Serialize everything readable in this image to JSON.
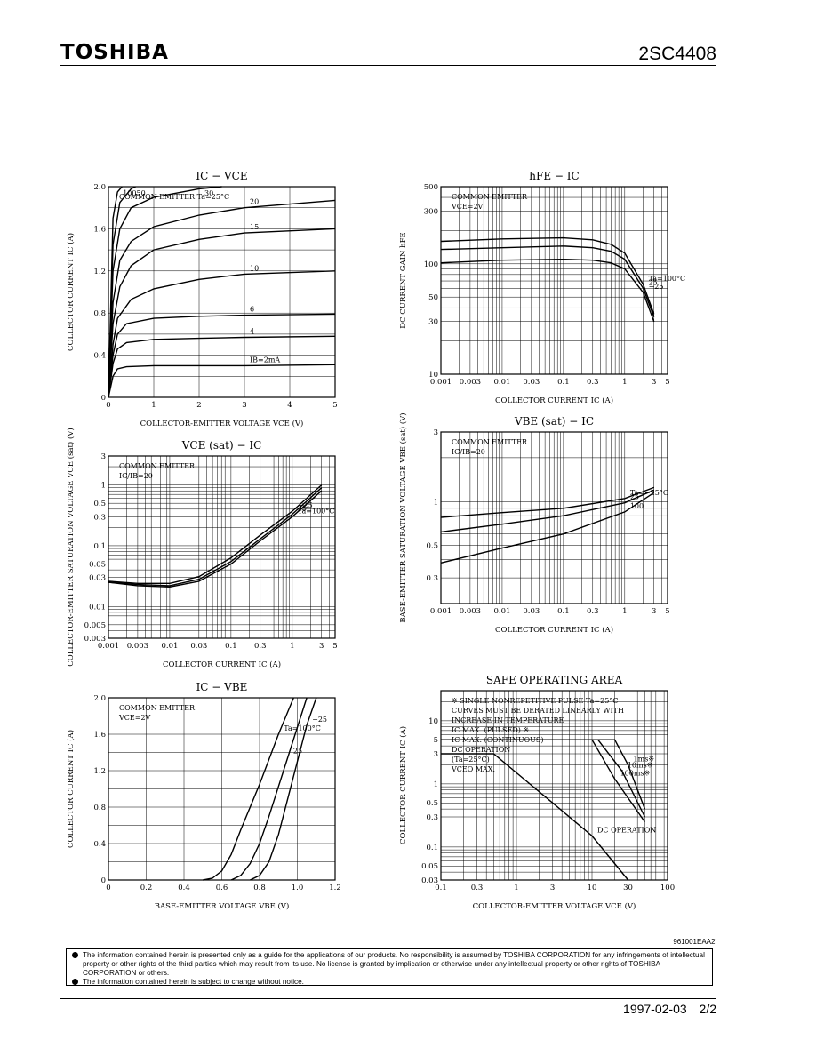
{
  "header": {
    "brand": "TOSHIBA",
    "part_number": "2SC4408"
  },
  "footer": {
    "date_page": "1997-02-03    2/2",
    "doc_number": "961001EAA2'"
  },
  "disclaimer": [
    "The information contained herein is presented only as a guide for the applications of our products. No responsibility is assumed by TOSHIBA CORPORATION for any infringements of intellectual property or other rights of the third parties which may result from its use. No license is granted by implication or otherwise under any intellectual property or other rights of TOSHIBA CORPORATION or others.",
    "The information contained herein is subject to change without notice."
  ],
  "chart_data": [
    {
      "type": "line",
      "title": "IC − VCE",
      "xlabel": "COLLECTOR-EMITTER VOLTAGE  VCE  (V)",
      "ylabel": "COLLECTOR CURRENT  IC  (A)",
      "xlim": [
        0,
        5
      ],
      "ylim": [
        0,
        2.0
      ],
      "xticks": [
        "0",
        "1",
        "2",
        "3",
        "4",
        "5"
      ],
      "yticks": [
        "0",
        "0.4",
        "0.8",
        "1.2",
        "1.6",
        "2.0"
      ],
      "annotation": "COMMON EMITTER   Ta=25°C",
      "series": [
        {
          "name": "IB=2mA",
          "x": [
            0,
            0.1,
            0.2,
            0.4,
            1,
            2,
            3,
            5
          ],
          "y": [
            0,
            0.2,
            0.27,
            0.29,
            0.3,
            0.3,
            0.3,
            0.31
          ]
        },
        {
          "name": "4",
          "x": [
            0,
            0.1,
            0.2,
            0.4,
            1,
            2,
            3,
            5
          ],
          "y": [
            0,
            0.32,
            0.46,
            0.52,
            0.55,
            0.56,
            0.57,
            0.58
          ]
        },
        {
          "name": "6",
          "x": [
            0,
            0.1,
            0.2,
            0.4,
            1,
            2,
            3,
            5
          ],
          "y": [
            0,
            0.4,
            0.6,
            0.7,
            0.75,
            0.77,
            0.78,
            0.79
          ]
        },
        {
          "name": "10",
          "x": [
            0,
            0.1,
            0.2,
            0.5,
            1,
            2,
            3,
            5
          ],
          "y": [
            0,
            0.5,
            0.75,
            0.93,
            1.03,
            1.12,
            1.17,
            1.2
          ]
        },
        {
          "name": "15",
          "x": [
            0,
            0.1,
            0.25,
            0.5,
            1,
            2,
            3,
            5
          ],
          "y": [
            0,
            0.7,
            1.05,
            1.25,
            1.4,
            1.5,
            1.56,
            1.6
          ]
        },
        {
          "name": "20",
          "x": [
            0,
            0.1,
            0.25,
            0.5,
            1,
            2,
            3,
            5
          ],
          "y": [
            0,
            0.9,
            1.3,
            1.48,
            1.62,
            1.73,
            1.8,
            1.87
          ]
        },
        {
          "name": "30",
          "x": [
            0,
            0.1,
            0.25,
            0.5,
            1,
            2,
            2.5
          ],
          "y": [
            0,
            1.2,
            1.6,
            1.8,
            1.9,
            1.98,
            2.0
          ]
        },
        {
          "name": "50",
          "x": [
            0,
            0.1,
            0.25,
            0.5,
            0.6
          ],
          "y": [
            0,
            1.45,
            1.85,
            1.98,
            2.0
          ]
        },
        {
          "name": "100",
          "x": [
            0,
            0.1,
            0.2,
            0.3
          ],
          "y": [
            0,
            1.7,
            1.95,
            2.0
          ]
        }
      ]
    },
    {
      "type": "line",
      "title": "hFE − IC",
      "xlabel": "COLLECTOR CURRENT  IC  (A)",
      "ylabel": "DC CURRENT GAIN  hFE",
      "xscale": "log",
      "yscale": "log",
      "xlim": [
        0.001,
        5
      ],
      "ylim": [
        10,
        500
      ],
      "xticks": [
        "0.001",
        "0.003",
        "0.01",
        "0.03",
        "0.1",
        "0.3",
        "1",
        "3",
        "5"
      ],
      "yticks": [
        "10",
        "30",
        "50",
        "100",
        "300",
        "500"
      ],
      "annotation": [
        "COMMON EMITTER",
        "VCE=2V"
      ],
      "series": [
        {
          "name": "Ta=100°C",
          "x": [
            0.001,
            0.01,
            0.1,
            0.3,
            0.6,
            1,
            2,
            3
          ],
          "y": [
            160,
            168,
            172,
            165,
            150,
            125,
            65,
            35
          ]
        },
        {
          "name": "25",
          "x": [
            0.001,
            0.01,
            0.1,
            0.3,
            0.6,
            1,
            2,
            3
          ],
          "y": [
            135,
            140,
            145,
            140,
            130,
            110,
            60,
            33
          ]
        },
        {
          "name": "−25",
          "x": [
            0.001,
            0.01,
            0.1,
            0.3,
            0.6,
            1,
            2,
            3
          ],
          "y": [
            102,
            108,
            110,
            108,
            102,
            90,
            55,
            30
          ]
        }
      ]
    },
    {
      "type": "line",
      "title": "VCE (sat) − IC",
      "xlabel": "COLLECTOR CURRENT  IC  (A)",
      "ylabel": "COLLECTOR-EMITTER SATURATION VOLTAGE  VCE (sat)  (V)",
      "xscale": "log",
      "yscale": "log",
      "xlim": [
        0.001,
        5
      ],
      "ylim": [
        0.003,
        3
      ],
      "xticks": [
        "0.001",
        "0.003",
        "0.01",
        "0.03",
        "0.1",
        "0.3",
        "1",
        "3",
        "5"
      ],
      "yticks": [
        "0.003",
        "0.005",
        "0.01",
        "0.03",
        "0.05",
        "0.1",
        "0.3",
        "0.5",
        "1",
        "3"
      ],
      "annotation": [
        "COMMON EMITTER",
        "IC/IB=20"
      ],
      "series": [
        {
          "name": "Ta=100°C",
          "x": [
            0.001,
            0.003,
            0.01,
            0.03,
            0.1,
            0.3,
            1,
            3
          ],
          "y": [
            0.025,
            0.022,
            0.021,
            0.026,
            0.05,
            0.12,
            0.3,
            0.8
          ]
        },
        {
          "name": "25",
          "x": [
            0.001,
            0.003,
            0.01,
            0.03,
            0.1,
            0.3,
            1,
            3
          ],
          "y": [
            0.025,
            0.023,
            0.022,
            0.028,
            0.055,
            0.13,
            0.33,
            0.9
          ]
        },
        {
          "name": "−25",
          "x": [
            0.001,
            0.003,
            0.01,
            0.03,
            0.1,
            0.3,
            1,
            3
          ],
          "y": [
            0.026,
            0.024,
            0.024,
            0.031,
            0.063,
            0.15,
            0.37,
            1.0
          ]
        }
      ]
    },
    {
      "type": "line",
      "title": "VBE (sat) − IC",
      "xlabel": "COLLECTOR CURRENT  IC  (A)",
      "ylabel": "BASE-EMITTER SATURATION VOLTAGE  VBE (sat)  (V)",
      "xscale": "log",
      "yscale": "log",
      "xlim": [
        0.001,
        5
      ],
      "ylim": [
        0.2,
        3
      ],
      "xticks": [
        "0.001",
        "0.003",
        "0.01",
        "0.03",
        "0.1",
        "0.3",
        "1",
        "3",
        "5"
      ],
      "yticks": [
        "0.3",
        "0.5",
        "1",
        "3"
      ],
      "annotation": [
        "COMMON EMITTER",
        "IC/IB=20"
      ],
      "series": [
        {
          "name": "Ta=−25°C",
          "x": [
            0.001,
            0.01,
            0.1,
            1,
            3
          ],
          "y": [
            0.78,
            0.84,
            0.9,
            1.05,
            1.25
          ]
        },
        {
          "name": "25",
          "x": [
            0.001,
            0.01,
            0.1,
            1,
            3
          ],
          "y": [
            0.62,
            0.7,
            0.8,
            0.98,
            1.2
          ]
        },
        {
          "name": "100",
          "x": [
            0.001,
            0.01,
            0.1,
            1,
            3
          ],
          "y": [
            0.38,
            0.48,
            0.6,
            0.85,
            1.15
          ]
        }
      ]
    },
    {
      "type": "line",
      "title": "IC − VBE",
      "xlabel": "BASE-EMITTER VOLTAGE  VBE  (V)",
      "ylabel": "COLLECTOR CURRENT  IC  (A)",
      "xlim": [
        0,
        1.2
      ],
      "ylim": [
        0,
        2.0
      ],
      "xticks": [
        "0",
        "0.2",
        "0.4",
        "0.6",
        "0.8",
        "1.0",
        "1.2"
      ],
      "yticks": [
        "0",
        "0.4",
        "0.8",
        "1.2",
        "1.6",
        "2.0"
      ],
      "annotation": [
        "COMMON EMITTER",
        "VCE=2V"
      ],
      "series": [
        {
          "name": "Ta=100°C",
          "x": [
            0.5,
            0.55,
            0.6,
            0.65,
            0.7,
            0.8,
            0.9,
            0.98
          ],
          "y": [
            0,
            0.02,
            0.1,
            0.28,
            0.55,
            1.05,
            1.6,
            2.0
          ]
        },
        {
          "name": "25",
          "x": [
            0.65,
            0.7,
            0.75,
            0.8,
            0.85,
            0.95,
            1.05
          ],
          "y": [
            0,
            0.05,
            0.18,
            0.4,
            0.7,
            1.35,
            2.0
          ]
        },
        {
          "name": "−25",
          "x": [
            0.75,
            0.8,
            0.85,
            0.9,
            0.95,
            1.05,
            1.1
          ],
          "y": [
            0,
            0.05,
            0.2,
            0.5,
            0.9,
            1.7,
            2.0
          ]
        }
      ]
    },
    {
      "type": "line",
      "title": "SAFE OPERATING AREA",
      "xlabel": "COLLECTOR-EMITTER VOLTAGE  VCE  (V)",
      "ylabel": "COLLECTOR CURRENT  IC  (A)",
      "xscale": "log",
      "yscale": "log",
      "xlim": [
        0.1,
        100
      ],
      "ylim": [
        0.03,
        30
      ],
      "xticks": [
        "0.1",
        "0.3",
        "1",
        "3",
        "10",
        "30",
        "100"
      ],
      "yticks": [
        "0.03",
        "0.05",
        "0.1",
        "0.3",
        "0.5",
        "1",
        "3",
        "5",
        "10"
      ],
      "annotation": [
        "※ SINGLE NONREPETITIVE PULSE Ta=25°C",
        "CURVES MUST BE DERATED LINEARLY WITH",
        "INCREASE IN TEMPERATURE",
        "IC MAX. (PULSED) ※",
        "IC MAX. (CONTINUOUS)",
        "DC OPERATION",
        "(Ta=25°C)",
        "VCEO MAX."
      ],
      "series": [
        {
          "name": "1ms※",
          "x": [
            0.1,
            20,
            30,
            50
          ],
          "y": [
            5,
            5,
            2,
            0.4
          ]
        },
        {
          "name": "10ms※",
          "x": [
            0.1,
            12,
            25,
            50
          ],
          "y": [
            5,
            5,
            1.6,
            0.3
          ]
        },
        {
          "name": "100ms※",
          "x": [
            0.1,
            10,
            20,
            50
          ],
          "y": [
            5,
            5,
            1.2,
            0.25
          ]
        },
        {
          "name": "DC OPERATION",
          "x": [
            0.1,
            0.5,
            1,
            3,
            10,
            30
          ],
          "y": [
            3,
            3,
            1.5,
            0.5,
            0.15,
            0.03
          ]
        }
      ]
    }
  ]
}
